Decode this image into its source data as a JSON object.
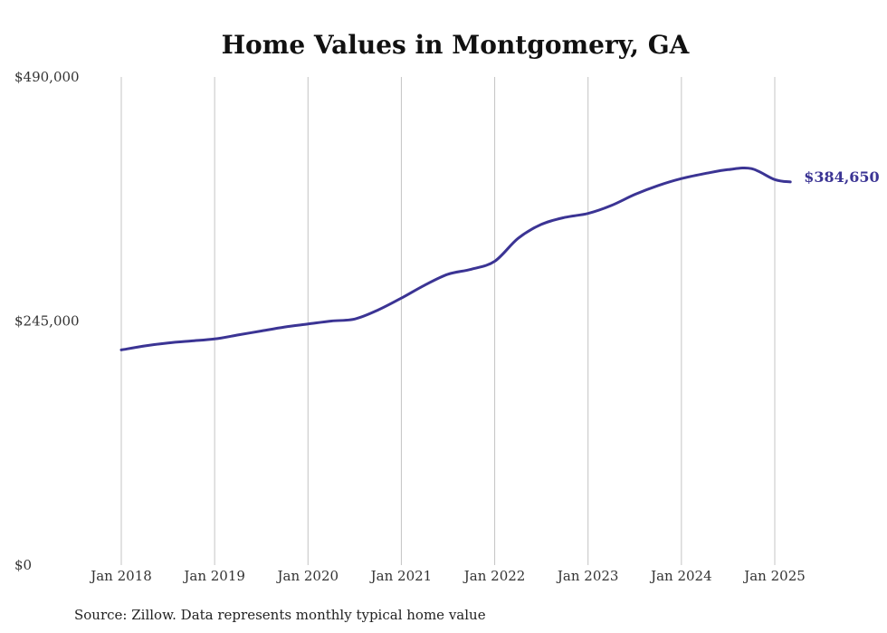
{
  "chart_data": {
    "type": "line",
    "title": "Home Values in Montgomery, GA",
    "xlabel": "",
    "ylabel": "",
    "x_tick_labels": [
      "Jan 2018",
      "Jan 2019",
      "Jan 2020",
      "Jan 2021",
      "Jan 2022",
      "Jan 2023",
      "Jan 2024",
      "Jan 2025"
    ],
    "y_tick_labels": [
      "$490,000",
      "$245,000",
      "$0"
    ],
    "y_ticks": [
      490000,
      245000,
      0
    ],
    "ylim": [
      0,
      490000
    ],
    "xlim": [
      "2018-01",
      "2025-03"
    ],
    "grid": "vertical",
    "series": [
      {
        "color": "#3b3494",
        "points": [
          [
            "2018-01",
            216000
          ],
          [
            "2018-04",
            220000
          ],
          [
            "2018-07",
            223000
          ],
          [
            "2018-10",
            225000
          ],
          [
            "2019-01",
            227000
          ],
          [
            "2019-04",
            231000
          ],
          [
            "2019-07",
            235000
          ],
          [
            "2019-10",
            239000
          ],
          [
            "2020-01",
            242000
          ],
          [
            "2020-04",
            245000
          ],
          [
            "2020-07",
            247000
          ],
          [
            "2020-10",
            256000
          ],
          [
            "2021-01",
            268000
          ],
          [
            "2021-04",
            281000
          ],
          [
            "2021-07",
            292000
          ],
          [
            "2021-10",
            297000
          ],
          [
            "2022-01",
            305000
          ],
          [
            "2022-04",
            328000
          ],
          [
            "2022-07",
            342000
          ],
          [
            "2022-10",
            349000
          ],
          [
            "2023-01",
            353000
          ],
          [
            "2023-04",
            361000
          ],
          [
            "2023-07",
            372000
          ],
          [
            "2023-10",
            381000
          ],
          [
            "2024-01",
            388000
          ],
          [
            "2024-04",
            393000
          ],
          [
            "2024-07",
            397000
          ],
          [
            "2024-10",
            398000
          ],
          [
            "2025-01",
            387000
          ],
          [
            "2025-03",
            384650
          ]
        ]
      }
    ],
    "end_label": "$384,650"
  },
  "source_note": "Source: Zillow. Data represents monthly typical home value"
}
